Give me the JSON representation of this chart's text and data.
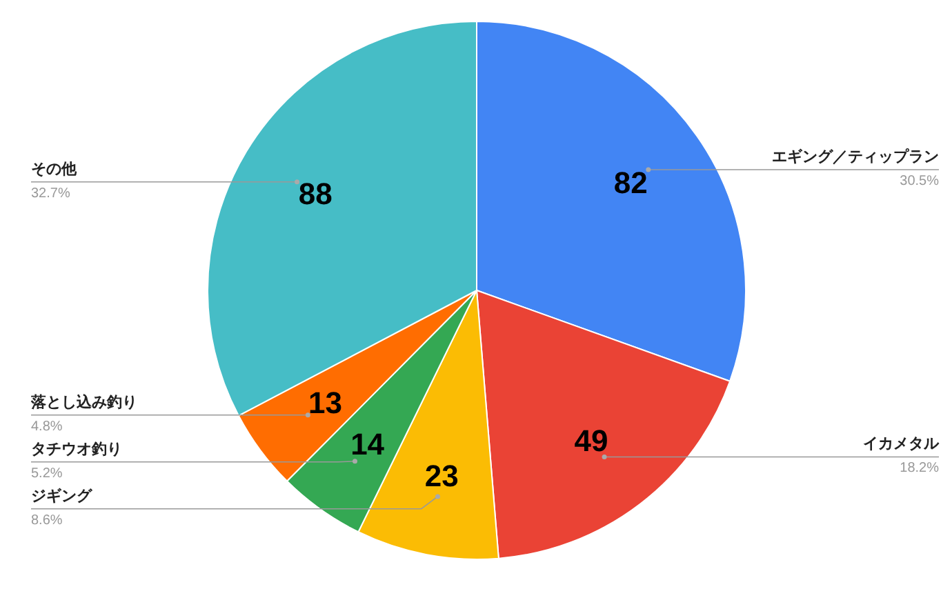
{
  "chart_data": {
    "type": "pie",
    "categories": [
      "エギング／ティップラン",
      "イカメタル",
      "ジギング",
      "タチウオ釣り",
      "落とし込み釣り",
      "その他"
    ],
    "values": [
      82,
      49,
      23,
      14,
      13,
      88
    ],
    "colors": [
      "#4285f4",
      "#ea4335",
      "#fbbc04",
      "#34a853",
      "#ff6d01",
      "#46bdc6"
    ],
    "data_labels": true,
    "annotations": [
      "30.5%",
      "18.2%",
      "8.6%",
      "5.2%",
      "4.8%",
      "32.7%"
    ]
  }
}
